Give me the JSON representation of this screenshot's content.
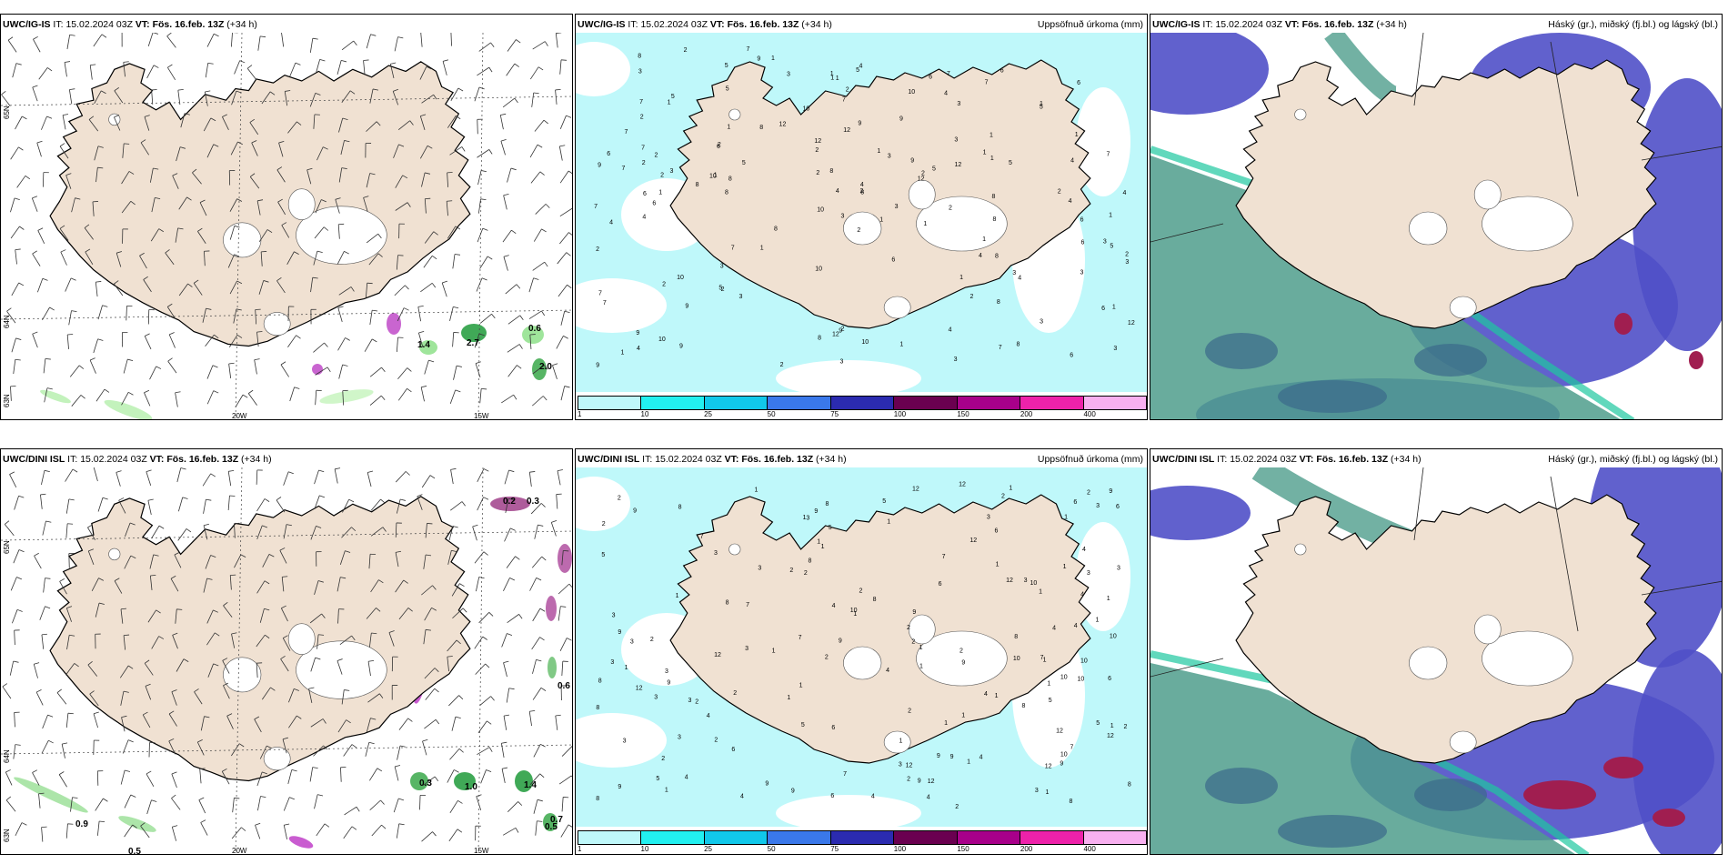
{
  "panels": [
    {
      "id": "top-left",
      "model": "UWC/IG-IS",
      "it_label": "IT:",
      "it_value": "15.02.2024 03Z",
      "vt_label": "VT:",
      "vt_value": "Fös. 16.feb. 13Z",
      "lead": "(+34 h)",
      "right_title": "",
      "kind": "wind"
    },
    {
      "id": "top-middle",
      "model": "UWC/IG-IS",
      "it_label": "IT:",
      "it_value": "15.02.2024 03Z",
      "vt_label": "VT:",
      "vt_value": "Fös. 16.feb. 13Z",
      "lead": "(+34 h)",
      "right_title": "Uppsöfnuð úrkoma (mm)",
      "kind": "precip"
    },
    {
      "id": "top-right",
      "model": "UWC/IG-IS",
      "it_label": "IT:",
      "it_value": "15.02.2024 03Z",
      "vt_label": "VT:",
      "vt_value": "Fös. 16.feb. 13Z",
      "lead": "(+34 h)",
      "right_title": "Háský (gr.), miðský (fj.bl.) og lágský (bl.)",
      "kind": "cloud"
    },
    {
      "id": "bottom-left",
      "model": "UWC/DINI ISL",
      "it_label": "IT:",
      "it_value": "15.02.2024 03Z",
      "vt_label": "VT:",
      "vt_value": "Fös. 16.feb. 13Z",
      "lead": "(+34 h)",
      "right_title": "",
      "kind": "wind"
    },
    {
      "id": "bottom-middle",
      "model": "UWC/DINI ISL",
      "it_label": "IT:",
      "it_value": "15.02.2024 03Z",
      "vt_label": "VT:",
      "vt_value": "Fös. 16.feb. 13Z",
      "lead": "(+34 h)",
      "right_title": "Uppsöfnuð úrkoma (mm)",
      "kind": "precip"
    },
    {
      "id": "bottom-right",
      "model": "UWC/DINI ISL",
      "it_label": "IT:",
      "it_value": "15.02.2024 03Z",
      "vt_label": "VT:",
      "vt_value": "Fös. 16.feb. 13Z",
      "lead": "(+34 h)",
      "right_title": "Háský (gr.), miðský (fj.bl.) og lágský (bl.)",
      "kind": "cloud"
    }
  ],
  "axes": {
    "lat_labels": [
      "65N",
      "64N",
      "63N"
    ],
    "lon_labels": [
      "20W",
      "15W"
    ]
  },
  "precip_legend": {
    "labels": [
      "1",
      "10",
      "25",
      "50",
      "75",
      "100",
      "150",
      "200",
      "400"
    ],
    "colors": [
      "#bff8fa",
      "#22f0f0",
      "#11c8ea",
      "#3a78ea",
      "#2b2bb0",
      "#6a0050",
      "#a8008a",
      "#ee22aa",
      "#f8b0f0"
    ]
  },
  "wind_labels": {
    "top": [
      "1.4",
      "2.7",
      "0.6",
      "2.0"
    ],
    "bottom": [
      "0.2",
      "0.3",
      "0.6",
      "0.3",
      "1.0",
      "1.4",
      "0.9",
      "0.5",
      "0.7",
      "0.5"
    ]
  },
  "colors": {
    "land": "#f0e1d2",
    "precip_light": "#bff8fa",
    "high_cloud": "#4f9e8c",
    "mid_cloud": "#5050c8",
    "low_cloud": "#a01e50"
  }
}
